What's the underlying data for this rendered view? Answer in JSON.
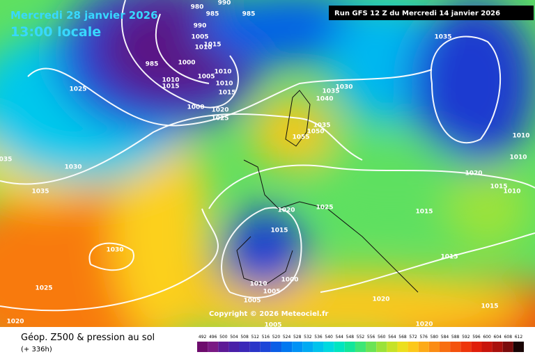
{
  "header": {
    "date": "Mercredi 28 janvier 2026",
    "time": "13:00 locale",
    "run": "Run GFS 12 Z du Mercredi 14 janvier 2026"
  },
  "copyright": "Copyright © 2026 Meteociel.fr",
  "footer": {
    "title": "Géop. Z500 & pression au sol",
    "lead": "(+ 336h)"
  },
  "colorbar": {
    "ticks": [
      492,
      496,
      500,
      504,
      508,
      512,
      516,
      520,
      524,
      528,
      532,
      536,
      540,
      544,
      548,
      552,
      556,
      560,
      564,
      568,
      572,
      576,
      580,
      584,
      588,
      592,
      596,
      600,
      604,
      608,
      612
    ],
    "colors": [
      "#6d0c6d",
      "#7a1a84",
      "#5d1a96",
      "#4a1fa8",
      "#3b28b8",
      "#2a35c8",
      "#1c46d8",
      "#0b5ee6",
      "#0078f0",
      "#0092f5",
      "#00aaf2",
      "#00c3ec",
      "#00d9df",
      "#00e5c0",
      "#12e69a",
      "#3de676",
      "#6be355",
      "#9be23a",
      "#c6e228",
      "#ecdf1e",
      "#fcc81a",
      "#fdaa17",
      "#fb8c13",
      "#f86e10",
      "#f4520d",
      "#ee360b",
      "#e01e0a",
      "#c8140b",
      "#a8100c",
      "#7a0c0c",
      "#1a0505"
    ]
  },
  "isobar_labels": [
    "980",
    "990",
    "985",
    "985",
    "990",
    "1005",
    "1010",
    "1015",
    "985",
    "1000",
    "1005",
    "1010",
    "1010",
    "1015",
    "1010",
    "1015",
    "1000",
    "1020",
    "1025",
    "1025",
    "1035",
    "1030",
    "1035",
    "1040",
    "1035",
    "1050",
    "1055",
    "1030",
    "1035",
    "035",
    "1020",
    "1025",
    "1015",
    "1020",
    "1015",
    "1010",
    "1010",
    "1010",
    "1015",
    "1030",
    "1025",
    "1020",
    "1010",
    "1005",
    "1000",
    "1005",
    "1005",
    "1020",
    "1020",
    "1015",
    "1015"
  ]
}
